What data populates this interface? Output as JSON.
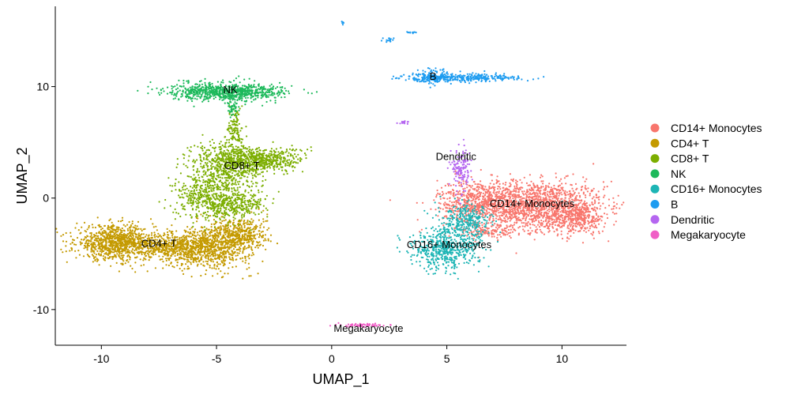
{
  "chart_data": {
    "type": "scatter",
    "xlabel": "UMAP_1",
    "ylabel": "UMAP_2",
    "xlim": [
      -12,
      12.8
    ],
    "ylim": [
      -13.2,
      17.2
    ],
    "xticks": [
      -10,
      -5,
      0,
      5,
      10
    ],
    "yticks": [
      -10,
      0,
      10
    ],
    "grid": false,
    "legend_position": "right",
    "series": [
      {
        "name": "CD14+ Monocytes",
        "color": "#F8766D",
        "label_at": [
          8.7,
          -0.5
        ]
      },
      {
        "name": "CD4+ T",
        "color": "#C49A00",
        "label_at": [
          -7.5,
          -4.1
        ]
      },
      {
        "name": "CD8+ T",
        "color": "#7CAE00",
        "label_at": [
          -3.9,
          2.9
        ]
      },
      {
        "name": "NK",
        "color": "#1DB95B",
        "label_at": [
          -4.4,
          9.7
        ]
      },
      {
        "name": "CD16+ Monocytes",
        "color": "#1DB5B5",
        "label_at": [
          5.1,
          -4.2
        ]
      },
      {
        "name": "B",
        "color": "#1E9CF0",
        "label_at": [
          4.4,
          10.9
        ]
      },
      {
        "name": "Dendritic",
        "color": "#B566F0",
        "label_at": [
          5.4,
          3.7
        ]
      },
      {
        "name": "Megakaryocyte",
        "color": "#F05EC6",
        "label_at": [
          1.6,
          -11.7
        ]
      }
    ]
  }
}
